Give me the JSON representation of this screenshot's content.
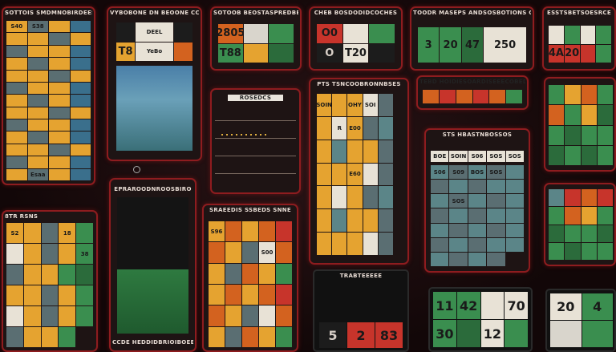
{
  "panels": {
    "p1_title": "SOTTOIS SMDMNOBIRDEES",
    "p1_cells": [
      "S40",
      "S38",
      "",
      "",
      "",
      "",
      "",
      "",
      "",
      "",
      "",
      "",
      "",
      "",
      "",
      "",
      "",
      "",
      "",
      "",
      "",
      "",
      "",
      "",
      "",
      "",
      "",
      "",
      "",
      "",
      "",
      "",
      "",
      "",
      "",
      "",
      "",
      "",
      "",
      "",
      "",
      "",
      "",
      "",
      "",
      "",
      "",
      "",
      "",
      "Esaa",
      "",
      ""
    ],
    "p2_title": "VYBOBONE DN BEOONE CCBS",
    "p2_top": [
      "",
      "DEEL",
      "",
      "",
      "T8",
      "",
      "YeBo",
      "",
      "",
      "",
      ""
    ],
    "p2_tag": "T8",
    "p3_title": "SOTOOB BEOSTASPREDBES",
    "p3_cells": [
      "2805",
      "",
      "T88",
      "",
      "",
      ""
    ],
    "p4_title": "CHEB BOSDODIDCOCHES",
    "p4_cells": [
      "O0",
      "",
      "",
      "O",
      "T20",
      ""
    ],
    "p5_title": "TOODR MASEPS ANDSOSBOTIONS COTS",
    "p5_cells": [
      "3",
      "20",
      "47",
      "250"
    ],
    "p6_title": "ESSTSBETSOESRCE",
    "p6_cells": [
      "4A",
      "20",
      "",
      "",
      "",
      "",
      "",
      ""
    ],
    "p7_title": "ROSEDCS",
    "p8_title": "PTS TSNCOOBRONNBSES",
    "p8_cells": [
      "SOIN",
      "",
      "OHY",
      "SOI",
      "",
      "",
      "R",
      "E00",
      "",
      "",
      "",
      "",
      "",
      "",
      "",
      "",
      "",
      "E60",
      "",
      "",
      "",
      "",
      "",
      "",
      "",
      "",
      "",
      "",
      "",
      "",
      "",
      "",
      "",
      "",
      ""
    ],
    "p9_title": "TEBD HOIDIESOARDISEEECOBEDS",
    "p10_title": "STS HBASTNBOSSOS",
    "p10_head": [
      "BOE",
      "SOIN",
      "S06",
      "SOS",
      "SOS"
    ],
    "p10_cells": [
      "S06",
      "S09",
      "BOS",
      "SOS",
      "",
      "",
      "",
      "",
      "",
      "",
      "",
      "SOS",
      "",
      "",
      "",
      "",
      "",
      "",
      "",
      "",
      "",
      "",
      "",
      "",
      "",
      "",
      "",
      "",
      "",
      "",
      "",
      "",
      "",
      ""
    ],
    "p11_title": "EPRAROODNROOSBIRO",
    "p11_footer": "CCDE HEDDIDBRIOIBOEE",
    "p12_title": "SRAEEDIS SSBEDS SNNE",
    "p12_cells": [
      "S96",
      "",
      "",
      "",
      "",
      "",
      "",
      "",
      "S00",
      "",
      "",
      "",
      "",
      "",
      "",
      "",
      "",
      "",
      "",
      "",
      "",
      "",
      "",
      "",
      "",
      "",
      "",
      "",
      "",
      ""
    ],
    "p13_title": "8TR RSNS",
    "p13_cells": [
      "S2",
      "",
      "",
      "18",
      "",
      "",
      "",
      "",
      "",
      "38",
      "",
      "",
      "",
      "",
      "",
      "",
      "",
      "",
      "",
      "",
      "",
      "",
      "",
      "",
      "",
      "",
      "",
      "",
      ""
    ],
    "p14_title": "TRABTEEEEE",
    "p14_cells": [
      "5",
      "2",
      "83"
    ],
    "p15_cells": [
      "11",
      "42",
      "",
      "70",
      "30",
      "",
      "12",
      ""
    ],
    "p16_cells": [
      "20",
      "4",
      "",
      ""
    ]
  }
}
